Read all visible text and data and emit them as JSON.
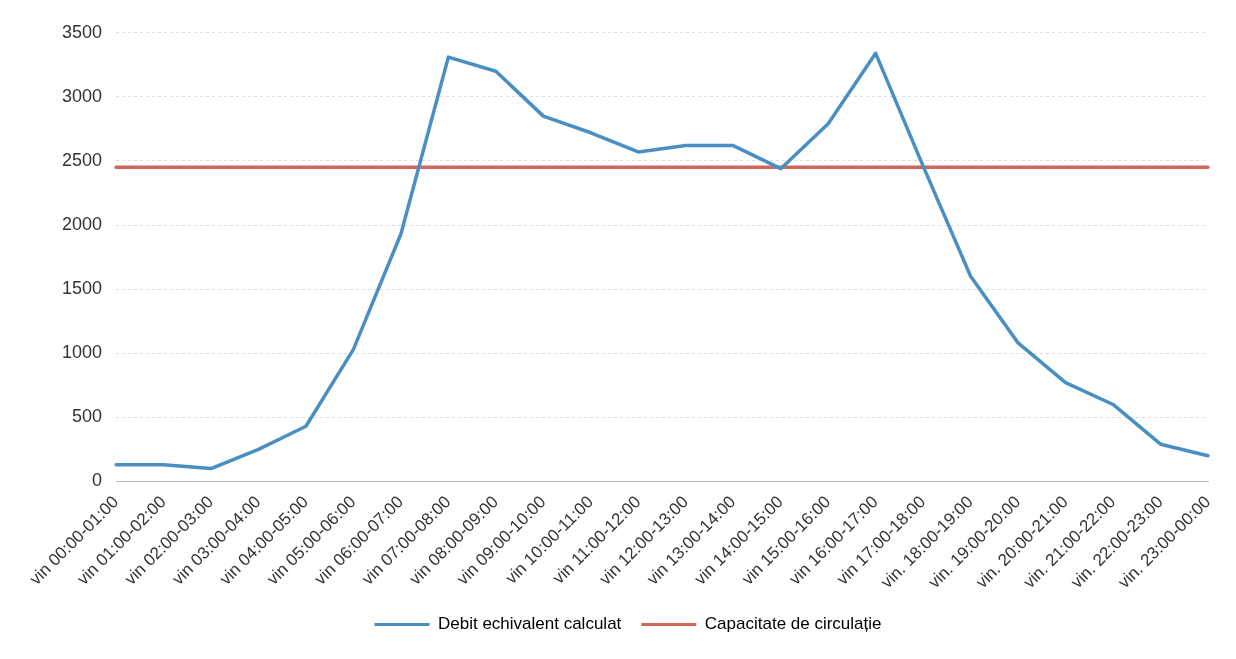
{
  "chart_data": {
    "type": "line",
    "categories": [
      "vin 00:00-01:00",
      "vin 01:00-02:00",
      "vin 02:00-03:00",
      "vin 03:00-04:00",
      "vin 04:00-05:00",
      "vin 05:00-06:00",
      "vin 06:00-07:00",
      "vin 07:00-08:00",
      "vin 08:00-09:00",
      "vin 09:00-10:00",
      "vin 10:00-11:00",
      "vin 11:00-12:00",
      "vin 12:00-13:00",
      "vin 13:00-14:00",
      "vin 14:00-15:00",
      "vin 15:00-16:00",
      "vin 16:00-17:00",
      "vin 17:00-18:00",
      "vin. 18:00-19:00",
      "vin. 19:00-20:00",
      "vin. 20:00-21:00",
      "vin. 21:00-22:00",
      "vin. 22:00-23:00",
      "vin. 23:00-00:00"
    ],
    "series": [
      {
        "name": "Debit echivalent calculat",
        "color": "#4a8fc2",
        "values": [
          130,
          130,
          100,
          250,
          430,
          1030,
          1930,
          3310,
          3200,
          2850,
          2720,
          2570,
          2620,
          2620,
          2440,
          2790,
          3340,
          2460,
          1600,
          1080,
          770,
          600,
          290,
          200
        ]
      },
      {
        "name": "Capacitate de circulație",
        "color": "#d0655a",
        "values": [
          2450,
          2450,
          2450,
          2450,
          2450,
          2450,
          2450,
          2450,
          2450,
          2450,
          2450,
          2450,
          2450,
          2450,
          2450,
          2450,
          2450,
          2450,
          2450,
          2450,
          2450,
          2450,
          2450,
          2450
        ]
      }
    ],
    "ylim": [
      0,
      3500
    ],
    "yticks": [
      0,
      500,
      1000,
      1500,
      2000,
      2500,
      3000,
      3500
    ],
    "grid": "y",
    "legend": "bottom",
    "marker": "none",
    "line_style": "solid"
  }
}
